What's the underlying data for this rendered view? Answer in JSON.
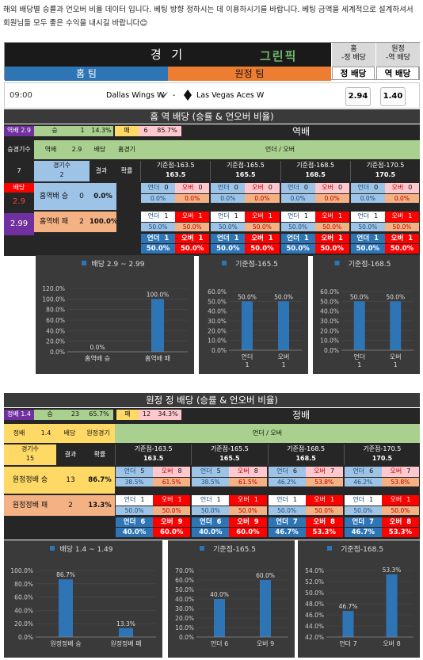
{
  "intro": {
    "line1": "해외 배당별 승률과 언오버 비율 데이터 입니다. 베팅 방향 정하시는 데 이용하시기를 바랍니다.  베팅 금액을 세계적으로 설계하셔서 회원님들 모두 좋은 수익을 내시길 바랍니다",
    "emoji": "😊"
  },
  "header": {
    "title": "경 기",
    "home": "홈 팀",
    "away": "원정 팀",
    "logo": "그린픽",
    "col1_top": "홈",
    "col1_sub": "-정 배당",
    "col1_btn": "정 배당",
    "col2_top": "원정",
    "col2_sub": "-역 배당",
    "col2_btn": "역 배당"
  },
  "match": {
    "time": "09:00",
    "home_team": "Dallas Wings W",
    "dash": "-",
    "away_team": "Las Vegas Aces W",
    "home_odds": "2.94",
    "away_odds": "1.40"
  },
  "section1": {
    "title": "홈 역 배당 (승률 & 언오버 비율)",
    "summary": {
      "label": "역배 2.9",
      "win": "승",
      "win_n": "1",
      "win_pct": "14.3%",
      "loss": "패",
      "loss_n": "6",
      "loss_pct": "85.7%",
      "right": "역배"
    },
    "head": {
      "match_count_label": "승경기수",
      "type": "역배",
      "odds": "2.9",
      "odds_word": "배당",
      "side": "홈경기",
      "uo": "언더 / 오버"
    },
    "sub": {
      "games_label": "경기수",
      "games": "2",
      "seven": "7",
      "result": "결과",
      "rate": "확률"
    },
    "lines": [
      "기준점-163.5",
      "기준점-165.5",
      "기준점-168.5",
      "기준점-170.5"
    ],
    "line_vals": [
      "163.5",
      "165.5",
      "168.5",
      "170.5"
    ],
    "odds_box": {
      "label": "배당",
      "val": "2.9",
      "val2": "2.99"
    },
    "rows": [
      {
        "label": "홈역배 승",
        "result": "0",
        "rate": "0.0%",
        "cells": [
          [
            "언더",
            "0",
            "오버",
            "0",
            "0.0%",
            "0.0%"
          ],
          [
            "언더",
            "0",
            "오버",
            "0",
            "0.0%",
            "0.0%"
          ],
          [
            "언더",
            "0",
            "오버",
            "0",
            "0.0%",
            "0.0%"
          ],
          [
            "언더",
            "0",
            "오버",
            "0",
            "0.0%",
            "0.0%"
          ]
        ]
      },
      {
        "label": "홈역배 패",
        "result": "2",
        "rate": "100.0%",
        "cells": [
          [
            "언더",
            "1",
            "오버",
            "1",
            "50.0%",
            "50.0%"
          ],
          [
            "언더",
            "1",
            "오버",
            "1",
            "50.0%",
            "50.0%"
          ],
          [
            "언더",
            "1",
            "오버",
            "1",
            "50.0%",
            "50.0%"
          ],
          [
            "언더",
            "1",
            "오버",
            "1",
            "50.0%",
            "50.0%"
          ]
        ]
      },
      {
        "label": "",
        "result": "",
        "rate": "",
        "cells": [
          [
            "언더",
            "1",
            "오버",
            "1",
            "50.0%",
            "50.0%"
          ],
          [
            "언더",
            "1",
            "오버",
            "1",
            "50.0%",
            "50.0%"
          ],
          [
            "언더",
            "1",
            "오버",
            "1",
            "50.0%",
            "50.0%"
          ],
          [
            "언더",
            "1",
            "오버",
            "1",
            "50.0%",
            "50.0%"
          ]
        ]
      }
    ]
  },
  "section2": {
    "title": "원정 정 배당 (승률 & 언오버 비율)",
    "summary": {
      "label": "정배 1.4",
      "win": "승",
      "win_n": "23",
      "win_pct": "65.7%",
      "loss": "패",
      "loss_n": "12",
      "loss_pct": "34.3%",
      "right": "정배"
    },
    "head": {
      "type": "정배",
      "odds": "1.4",
      "odds_word": "배당",
      "side": "원정경기",
      "uo": "언더 / 오버"
    },
    "sub": {
      "games_label": "경기수",
      "games": "15",
      "result": "결과",
      "rate": "확률"
    },
    "lines": [
      "기준점-163.5",
      "기준점-165.5",
      "기준점-168.5",
      "기준점-170.5"
    ],
    "line_vals": [
      "163.5",
      "165.5",
      "168.5",
      "170.5"
    ],
    "rows": [
      {
        "label": "원정정배 승",
        "result": "13",
        "rate": "86.7%",
        "cells": [
          [
            "언더",
            "5",
            "오버",
            "8",
            "38.5%",
            "61.5%"
          ],
          [
            "언더",
            "5",
            "오버",
            "8",
            "38.5%",
            "61.5%"
          ],
          [
            "언더",
            "6",
            "오버",
            "7",
            "46.2%",
            "53.8%"
          ],
          [
            "언더",
            "6",
            "오버",
            "7",
            "46.2%",
            "53.8%"
          ]
        ]
      },
      {
        "label": "원정정배 패",
        "result": "2",
        "rate": "13.3%",
        "cells": [
          [
            "언더",
            "1",
            "오버",
            "1",
            "50.0%",
            "50.0%"
          ],
          [
            "언더",
            "1",
            "오버",
            "1",
            "50.0%",
            "50.0%"
          ],
          [
            "언더",
            "1",
            "오버",
            "1",
            "50.0%",
            "50.0%"
          ],
          [
            "언더",
            "1",
            "오버",
            "1",
            "50.0%",
            "50.0%"
          ]
        ]
      },
      {
        "label": "",
        "result": "",
        "rate": "",
        "cells": [
          [
            "언더",
            "6",
            "오버",
            "9",
            "40.0%",
            "60.0%"
          ],
          [
            "언더",
            "6",
            "오버",
            "9",
            "40.0%",
            "60.0%"
          ],
          [
            "언더",
            "7",
            "오버",
            "8",
            "46.7%",
            "53.3%"
          ],
          [
            "언더",
            "7",
            "오버",
            "8",
            "46.7%",
            "53.3%"
          ]
        ]
      }
    ]
  },
  "chart_data": [
    {
      "type": "bar",
      "title": "배당 2.9 ~ 2.99",
      "categories": [
        "홈역배 승",
        "홈역배 패"
      ],
      "values": [
        0.0,
        100.0
      ],
      "labels": [
        "0.0%",
        "100.0%"
      ],
      "yticks": [
        "0.0%",
        "20.0%",
        "40.0%",
        "60.0%",
        "80.0%",
        "100.0%",
        "120.0%"
      ],
      "ylim": [
        0,
        120
      ]
    },
    {
      "type": "bar",
      "title": "기준점-165.5",
      "categories": [
        "언더",
        "오버"
      ],
      "sub": [
        "1",
        "1"
      ],
      "values": [
        50.0,
        50.0
      ],
      "labels": [
        "50.0%",
        "50.0%"
      ],
      "yticks": [
        "0.0%",
        "10.0%",
        "20.0%",
        "30.0%",
        "40.0%",
        "50.0%",
        "60.0%"
      ],
      "ylim": [
        0,
        60
      ]
    },
    {
      "type": "bar",
      "title": "기준점-168.5",
      "categories": [
        "언더",
        "오버"
      ],
      "sub": [
        "1",
        "1"
      ],
      "values": [
        50.0,
        50.0
      ],
      "labels": [
        "50.0%",
        "50.0%"
      ],
      "yticks": [
        "0.0%",
        "10.0%",
        "20.0%",
        "30.0%",
        "40.0%",
        "50.0%",
        "60.0%"
      ],
      "ylim": [
        0,
        60
      ]
    },
    {
      "type": "bar",
      "title": "배당 1.4 ~ 1.49",
      "categories": [
        "원정정배 승",
        "원정정배 패"
      ],
      "values": [
        86.7,
        13.3
      ],
      "labels": [
        "86.7%",
        "13.3%"
      ],
      "yticks": [
        "0.0%",
        "20.0%",
        "40.0%",
        "60.0%",
        "80.0%",
        "100.0%"
      ],
      "ylim": [
        0,
        100
      ]
    },
    {
      "type": "bar",
      "title": "기준점-165.5",
      "categories": [
        "언더  6",
        "오버  9"
      ],
      "values": [
        40.0,
        60.0
      ],
      "labels": [
        "40.0%",
        "60.0%"
      ],
      "yticks": [
        "0.0%",
        "10.0%",
        "20.0%",
        "30.0%",
        "40.0%",
        "50.0%",
        "60.0%",
        "70.0%"
      ],
      "ylim": [
        0,
        70
      ]
    },
    {
      "type": "bar",
      "title": "기준점-168.5",
      "categories": [
        "언더  7",
        "오버  8"
      ],
      "values": [
        46.7,
        53.3
      ],
      "labels": [
        "46.7%",
        "53.3%"
      ],
      "yticks": [
        "42.0%",
        "44.0%",
        "46.0%",
        "48.0%",
        "50.0%",
        "52.0%",
        "54.0%"
      ],
      "ylim": [
        42,
        54
      ]
    }
  ]
}
